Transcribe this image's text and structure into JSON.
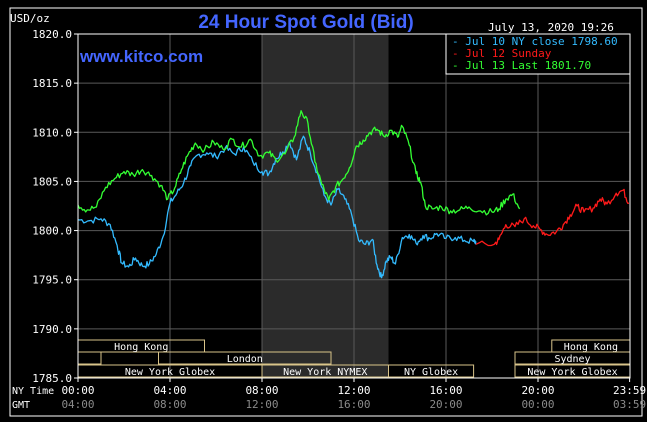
{
  "chart_data": {
    "type": "line",
    "title": "24 Hour Spot Gold (Bid)",
    "ylabel": "USD/oz",
    "timestamp": "July 13, 2020 19:26",
    "watermark": "www.kitco.com",
    "ylim": [
      1785.0,
      1820.0
    ],
    "y_ticks": [
      "1820.0",
      "1815.0",
      "1810.0",
      "1805.0",
      "1800.0",
      "1795.0",
      "1790.0",
      "1785.0"
    ],
    "x_ticks": [
      {
        "ny": "00:00",
        "gmt": "04:00"
      },
      {
        "ny": "04:00",
        "gmt": "08:00"
      },
      {
        "ny": "08:00",
        "gmt": "12:00"
      },
      {
        "ny": "12:00",
        "gmt": "16:00"
      },
      {
        "ny": "16:00",
        "gmt": "20:00"
      },
      {
        "ny": "20:00",
        "gmt": "00:00"
      },
      {
        "ny": "23:59",
        "gmt": "03:59"
      }
    ],
    "x_row_labels": {
      "ny": "NY Time",
      "gmt": "GMT"
    },
    "legend_position": "top-right",
    "grid": true,
    "series": [
      {
        "name": "Jul 10 NY close 1798.60",
        "color": "#33bbff",
        "points": [
          [
            0,
            1801.1
          ],
          [
            0.5,
            1801.0
          ],
          [
            1.0,
            1801.2
          ],
          [
            1.4,
            1800.6
          ],
          [
            1.7,
            1798.5
          ],
          [
            1.9,
            1796.7
          ],
          [
            2.2,
            1796.3
          ],
          [
            2.5,
            1797.2
          ],
          [
            2.8,
            1796.4
          ],
          [
            3.1,
            1796.6
          ],
          [
            3.4,
            1797.6
          ],
          [
            3.7,
            1799.4
          ],
          [
            4.0,
            1802.8
          ],
          [
            4.3,
            1803.8
          ],
          [
            4.6,
            1804.9
          ],
          [
            4.9,
            1806.6
          ],
          [
            5.2,
            1807.7
          ],
          [
            5.6,
            1807.9
          ],
          [
            6.0,
            1807.5
          ],
          [
            6.4,
            1808.4
          ],
          [
            6.8,
            1807.8
          ],
          [
            7.2,
            1808.5
          ],
          [
            7.6,
            1807.0
          ],
          [
            8.0,
            1806.0
          ],
          [
            8.3,
            1805.8
          ],
          [
            8.6,
            1807.3
          ],
          [
            8.9,
            1808.0
          ],
          [
            9.2,
            1809.0
          ],
          [
            9.5,
            1807.2
          ],
          [
            9.8,
            1809.6
          ],
          [
            10.1,
            1807.9
          ],
          [
            10.4,
            1805.9
          ],
          [
            10.7,
            1803.6
          ],
          [
            11.0,
            1802.6
          ],
          [
            11.3,
            1804.2
          ],
          [
            11.6,
            1803.2
          ],
          [
            11.9,
            1801.6
          ],
          [
            12.2,
            1799.0
          ],
          [
            12.5,
            1798.6
          ],
          [
            12.8,
            1799.1
          ],
          [
            13.0,
            1796.5
          ],
          [
            13.2,
            1795.2
          ],
          [
            13.4,
            1796.9
          ],
          [
            13.6,
            1797.3
          ],
          [
            13.8,
            1796.6
          ],
          [
            14.1,
            1799.3
          ],
          [
            14.4,
            1799.6
          ],
          [
            14.7,
            1798.7
          ],
          [
            15.0,
            1799.5
          ],
          [
            15.3,
            1799.2
          ],
          [
            15.6,
            1799.7
          ],
          [
            16.0,
            1799.2
          ],
          [
            16.4,
            1799.3
          ],
          [
            16.8,
            1799.0
          ],
          [
            17.2,
            1798.9
          ],
          [
            17.3,
            1798.9
          ]
        ]
      },
      {
        "name": "Jul 12 Sunday",
        "color": "#ff1a1a",
        "points": [
          [
            17.3,
            1798.6
          ],
          [
            18.1,
            1798.6
          ],
          [
            18.3,
            1799.1
          ],
          [
            18.6,
            1800.6
          ],
          [
            19.0,
            1800.4
          ],
          [
            19.4,
            1801.2
          ],
          [
            19.8,
            1800.5
          ],
          [
            20.1,
            1800.1
          ],
          [
            20.4,
            1799.6
          ],
          [
            20.8,
            1799.9
          ],
          [
            21.1,
            1800.6
          ],
          [
            21.4,
            1801.6
          ],
          [
            21.7,
            1802.5
          ],
          [
            22.0,
            1801.9
          ],
          [
            22.4,
            1802.3
          ],
          [
            22.7,
            1803.2
          ],
          [
            23.0,
            1802.7
          ],
          [
            23.4,
            1803.8
          ],
          [
            23.7,
            1804.1
          ],
          [
            23.95,
            1802.8
          ]
        ]
      },
      {
        "name": "Jul 13 Last 1801.70",
        "color": "#33ff33",
        "points": [
          [
            0,
            1802.6
          ],
          [
            0.4,
            1802.1
          ],
          [
            0.8,
            1802.4
          ],
          [
            1.2,
            1804.4
          ],
          [
            1.6,
            1805.3
          ],
          [
            2.0,
            1806.0
          ],
          [
            2.4,
            1805.7
          ],
          [
            2.8,
            1806.2
          ],
          [
            3.2,
            1805.6
          ],
          [
            3.6,
            1804.6
          ],
          [
            3.9,
            1803.2
          ],
          [
            4.2,
            1804.3
          ],
          [
            4.5,
            1806.2
          ],
          [
            4.8,
            1807.8
          ],
          [
            5.1,
            1808.9
          ],
          [
            5.5,
            1808.2
          ],
          [
            5.9,
            1809.0
          ],
          [
            6.3,
            1808.3
          ],
          [
            6.7,
            1809.3
          ],
          [
            7.1,
            1808.5
          ],
          [
            7.5,
            1809.3
          ],
          [
            7.9,
            1807.6
          ],
          [
            8.3,
            1807.9
          ],
          [
            8.6,
            1807.2
          ],
          [
            9.0,
            1807.8
          ],
          [
            9.4,
            1809.5
          ],
          [
            9.7,
            1812.2
          ],
          [
            10.0,
            1810.9
          ],
          [
            10.3,
            1807.0
          ],
          [
            10.6,
            1804.7
          ],
          [
            10.9,
            1803.1
          ],
          [
            11.2,
            1804.4
          ],
          [
            11.5,
            1805.2
          ],
          [
            11.8,
            1806.4
          ],
          [
            12.1,
            1808.6
          ],
          [
            12.4,
            1809.2
          ],
          [
            12.7,
            1810.0
          ],
          [
            13.0,
            1810.3
          ],
          [
            13.3,
            1809.6
          ],
          [
            13.6,
            1810.2
          ],
          [
            13.9,
            1809.5
          ],
          [
            14.1,
            1810.6
          ],
          [
            14.4,
            1808.7
          ],
          [
            14.7,
            1805.8
          ],
          [
            14.9,
            1804.9
          ],
          [
            15.1,
            1802.5
          ],
          [
            15.4,
            1802.2
          ],
          [
            15.8,
            1802.4
          ],
          [
            16.2,
            1802.0
          ],
          [
            16.6,
            1802.1
          ],
          [
            17.0,
            1802.4
          ],
          [
            17.5,
            1802.0
          ],
          [
            18.0,
            1801.9
          ],
          [
            18.3,
            1802.2
          ],
          [
            18.6,
            1803.2
          ],
          [
            18.9,
            1803.7
          ],
          [
            19.2,
            1802.2
          ]
        ]
      }
    ],
    "shaded_region": {
      "x_from": 8.0,
      "x_to": 13.5,
      "name": "New York NYMEX"
    },
    "session_bands": [
      {
        "label": "Hong Kong",
        "x_from": 0.0,
        "x_to": 5.5,
        "row": 0
      },
      {
        "label": "Hong Kong",
        "x_from": 20.6,
        "x_to": 24.0,
        "row": 0
      },
      {
        "label": "",
        "x_from": 0.0,
        "x_to": 1.0,
        "row": 1
      },
      {
        "label": "London",
        "x_from": 3.5,
        "x_to": 11.0,
        "row": 1
      },
      {
        "label": "Sydney",
        "x_from": 19.0,
        "x_to": 24.0,
        "row": 1
      },
      {
        "label": "New York Globex",
        "x_from": 0.0,
        "x_to": 8.0,
        "row": 2
      },
      {
        "label": "New York NYMEX",
        "x_from": 8.0,
        "x_to": 13.5,
        "row": 2
      },
      {
        "label": "NY Globex",
        "x_from": 13.5,
        "x_to": 17.2,
        "row": 2
      },
      {
        "label": "New York Globex",
        "x_from": 19.0,
        "x_to": 24.0,
        "row": 2
      }
    ]
  }
}
